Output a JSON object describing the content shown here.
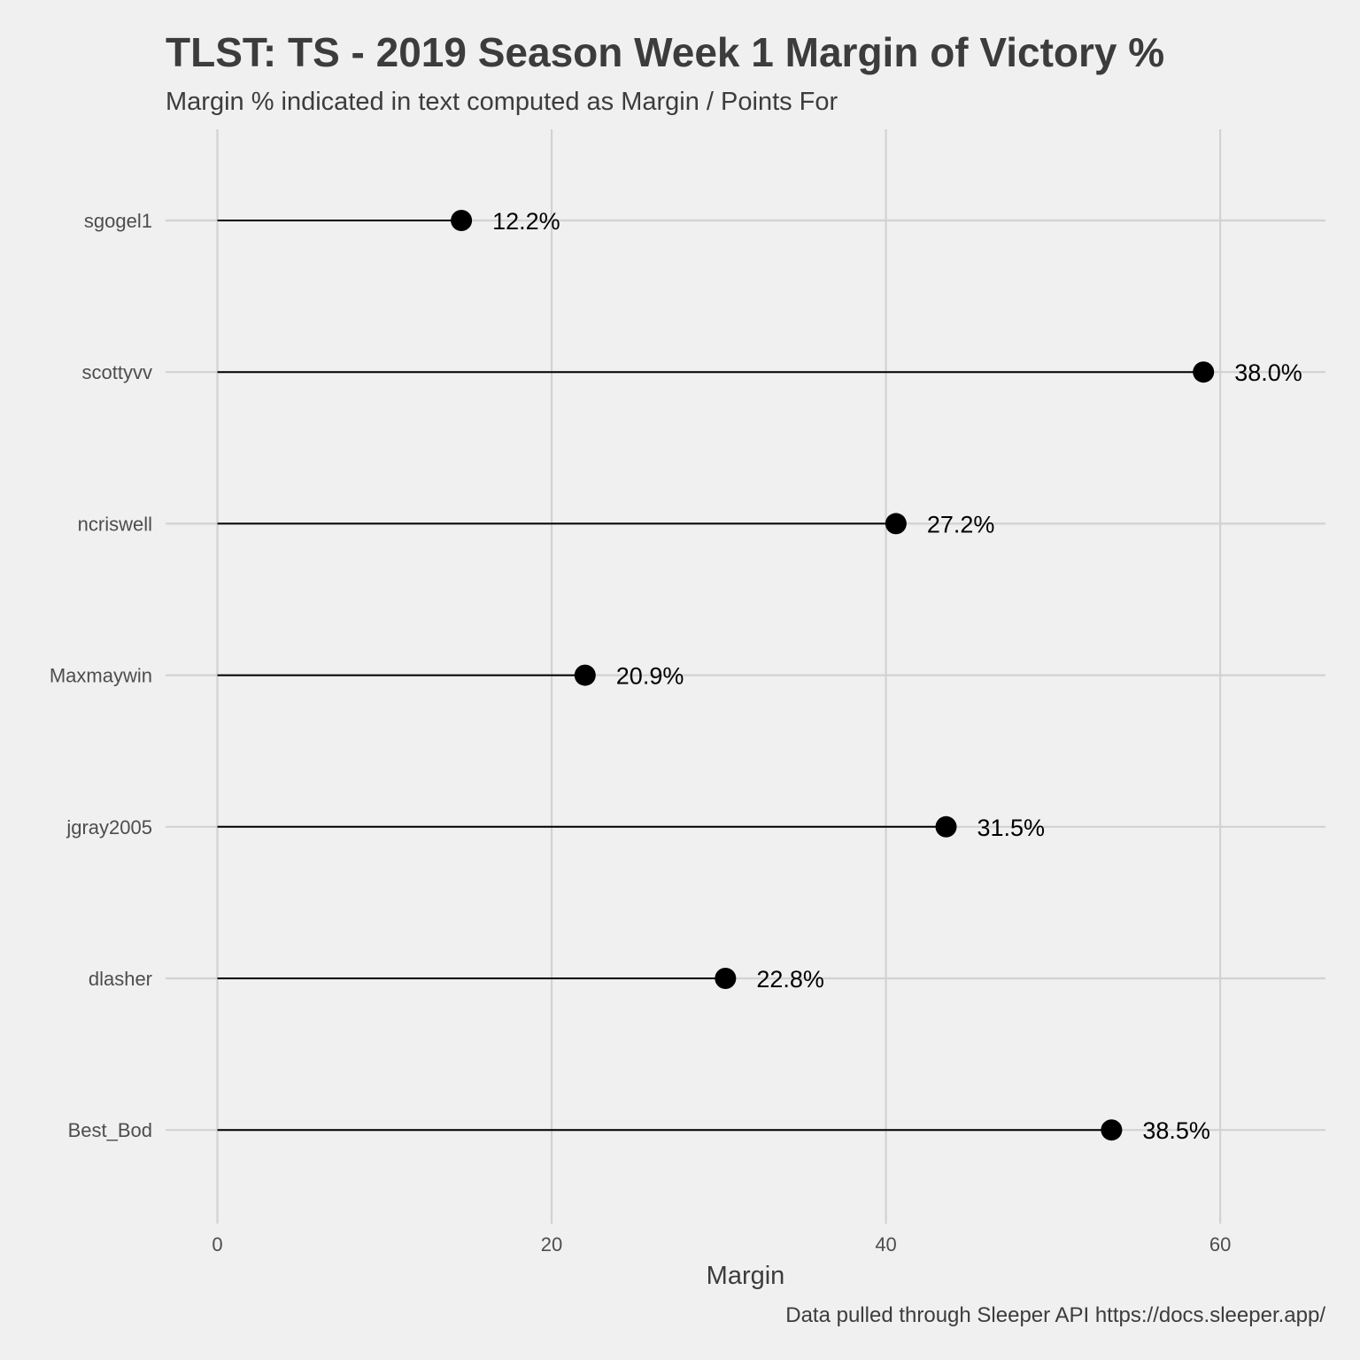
{
  "chart_data": {
    "type": "lollipop",
    "title": "TLST: TS - 2019 Season Week 1 Margin of Victory %",
    "subtitle": "Margin % indicated in text computed as Margin / Points For",
    "caption": "Data pulled through Sleeper API https://docs.sleeper.app/",
    "xlabel": "Margin",
    "ylabel": "",
    "xlim": [
      -3.1,
      66.3
    ],
    "x_ticks": [
      0,
      20,
      40,
      60
    ],
    "grid": true,
    "categories": [
      "sgogel1",
      "scottyvv",
      "ncriswell",
      "Maxmaywin",
      "jgray2005",
      "dlasher",
      "Best_Bod"
    ],
    "values": [
      14.6,
      59.0,
      40.6,
      22.0,
      43.6,
      30.4,
      53.5
    ],
    "labels": [
      "12.2%",
      "38.0%",
      "27.2%",
      "20.9%",
      "31.5%",
      "22.8%",
      "38.5%"
    ],
    "colors": {
      "background": "#f0f0f0",
      "grid": "#d2d2d2",
      "segment": "#000000",
      "point": "#000000",
      "text": "#3c3c3c"
    }
  }
}
